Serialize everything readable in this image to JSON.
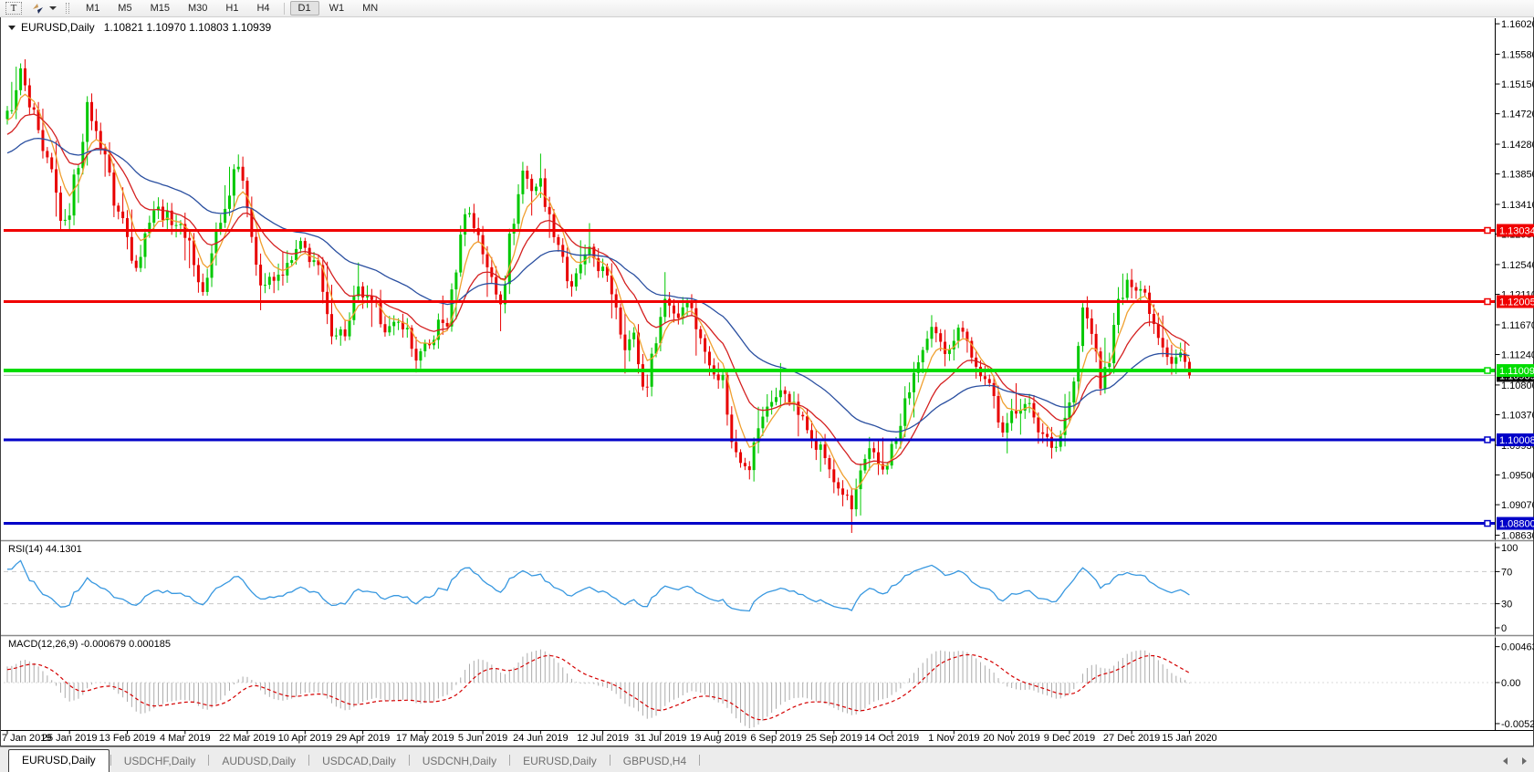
{
  "toolbar": {
    "text_tool_label": "T",
    "timeframes": [
      {
        "label": "M1"
      },
      {
        "label": "M5"
      },
      {
        "label": "M15"
      },
      {
        "label": "M30"
      },
      {
        "label": "H1"
      },
      {
        "label": "H4",
        "divider_after": true
      },
      {
        "label": "D1",
        "active": true
      },
      {
        "label": "W1"
      },
      {
        "label": "MN"
      }
    ]
  },
  "title": {
    "symbol_period": "EURUSD,Daily",
    "ohlc": "1.10821 1.10970 1.10803 1.10939"
  },
  "chart_data": {
    "type": "candlestick",
    "symbol": "EURUSD",
    "period": "Daily",
    "quote_open": "1.10821",
    "quote_high": "1.10970",
    "quote_low": "1.10803",
    "quote_close": "1.10939",
    "candle_up_color": "#00C800",
    "candle_down_color": "#E80000",
    "price_scale": {
      "top": 1.161,
      "bottom": 1.0857
    },
    "y_axis_ticks": [
      "1.16020",
      "1.15580",
      "1.15150",
      "1.14720",
      "1.14280",
      "1.13850",
      "1.13410",
      "1.12980",
      "1.12540",
      "1.12110",
      "1.11670",
      "1.11240",
      "1.10800",
      "1.10370",
      "1.09930",
      "1.09500",
      "1.09070",
      "1.08630"
    ],
    "x_axis_labels": [
      {
        "i": 0,
        "t": "7 Jan 2019"
      },
      {
        "i": 14,
        "t": "25 Jan 2019"
      },
      {
        "i": 27,
        "t": "13 Feb 2019"
      },
      {
        "i": 40,
        "t": "4 Mar 2019"
      },
      {
        "i": 54,
        "t": "22 Mar 2019"
      },
      {
        "i": 67,
        "t": "10 Apr 2019"
      },
      {
        "i": 80,
        "t": "29 Apr 2019"
      },
      {
        "i": 94,
        "t": "17 May 2019"
      },
      {
        "i": 107,
        "t": "5 Jun 2019"
      },
      {
        "i": 120,
        "t": "24 Jun 2019"
      },
      {
        "i": 134,
        "t": "12 Jul 2019"
      },
      {
        "i": 147,
        "t": "31 Jul 2019"
      },
      {
        "i": 160,
        "t": "19 Aug 2019"
      },
      {
        "i": 173,
        "t": "6 Sep 2019"
      },
      {
        "i": 186,
        "t": "25 Sep 2019"
      },
      {
        "i": 199,
        "t": "14 Oct 2019"
      },
      {
        "i": 213,
        "t": "1 Nov 2019"
      },
      {
        "i": 226,
        "t": "20 Nov 2019"
      },
      {
        "i": 239,
        "t": "9 Dec 2019"
      },
      {
        "i": 253,
        "t": "27 Dec 2019"
      },
      {
        "i": 266,
        "t": "15 Jan 2020"
      }
    ],
    "candle_count": 267,
    "price_path_anchors": [
      [
        -60,
        1.138
      ],
      [
        -48,
        1.134
      ],
      [
        -36,
        1.14
      ],
      [
        -24,
        1.138
      ],
      [
        -14,
        1.141
      ],
      [
        -7,
        1.144
      ],
      [
        0,
        1.147
      ],
      [
        2,
        1.15
      ],
      [
        3,
        1.1535
      ],
      [
        5,
        1.148
      ],
      [
        9,
        1.14
      ],
      [
        13,
        1.131
      ],
      [
        16,
        1.14
      ],
      [
        18,
        1.148
      ],
      [
        21,
        1.143
      ],
      [
        25,
        1.133
      ],
      [
        29,
        1.1258
      ],
      [
        33,
        1.1335
      ],
      [
        37,
        1.132
      ],
      [
        40,
        1.13
      ],
      [
        44,
        1.1215
      ],
      [
        48,
        1.132
      ],
      [
        52,
        1.1405
      ],
      [
        55,
        1.13
      ],
      [
        57,
        1.1225
      ],
      [
        60,
        1.123
      ],
      [
        63,
        1.125
      ],
      [
        66,
        1.128
      ],
      [
        69,
        1.126
      ],
      [
        73,
        1.116
      ],
      [
        76,
        1.1155
      ],
      [
        79,
        1.1215
      ],
      [
        82,
        1.1195
      ],
      [
        86,
        1.116
      ],
      [
        89,
        1.117
      ],
      [
        92,
        1.112
      ],
      [
        95,
        1.1135
      ],
      [
        97,
        1.1168
      ],
      [
        99,
        1.117
      ],
      [
        101,
        1.125
      ],
      [
        103,
        1.1335
      ],
      [
        106,
        1.13
      ],
      [
        108,
        1.1245
      ],
      [
        111,
        1.1205
      ],
      [
        114,
        1.132
      ],
      [
        116,
        1.139
      ],
      [
        118,
        1.1365
      ],
      [
        120,
        1.1373
      ],
      [
        122,
        1.132
      ],
      [
        124,
        1.1285
      ],
      [
        127,
        1.1215
      ],
      [
        129,
        1.1255
      ],
      [
        131,
        1.127
      ],
      [
        134,
        1.1245
      ],
      [
        136,
        1.1215
      ],
      [
        139,
        1.114
      ],
      [
        141,
        1.115
      ],
      [
        143,
        1.1077
      ],
      [
        144,
        1.1085
      ],
      [
        146,
        1.115
      ],
      [
        148,
        1.1205
      ],
      [
        151,
        1.118
      ],
      [
        153,
        1.121
      ],
      [
        155,
        1.1165
      ],
      [
        158,
        1.111
      ],
      [
        161,
        1.109
      ],
      [
        163,
        1.0995
      ],
      [
        165,
        1.0975
      ],
      [
        167,
        1.0965
      ],
      [
        169,
        1.102
      ],
      [
        172,
        1.106
      ],
      [
        175,
        1.107
      ],
      [
        178,
        1.104
      ],
      [
        180,
        1.1015
      ],
      [
        183,
        1.099
      ],
      [
        186,
        1.094
      ],
      [
        188,
        1.0925
      ],
      [
        190,
        1.09
      ],
      [
        192,
        1.0955
      ],
      [
        194,
        1.098
      ],
      [
        197,
        1.096
      ],
      [
        200,
        1.1
      ],
      [
        203,
        1.1075
      ],
      [
        206,
        1.113
      ],
      [
        208,
        1.1155
      ],
      [
        211,
        1.113
      ],
      [
        213,
        1.115
      ],
      [
        215,
        1.1165
      ],
      [
        218,
        1.1105
      ],
      [
        221,
        1.1075
      ],
      [
        224,
        1.102
      ],
      [
        227,
        1.104
      ],
      [
        229,
        1.106
      ],
      [
        232,
        1.1015
      ],
      [
        234,
        1.1005
      ],
      [
        236,
        1.0992
      ],
      [
        238,
        1.103
      ],
      [
        240,
        1.108
      ],
      [
        242,
        1.119
      ],
      [
        244,
        1.116
      ],
      [
        246,
        1.108
      ],
      [
        248,
        1.112
      ],
      [
        250,
        1.12
      ],
      [
        253,
        1.123
      ],
      [
        255,
        1.122
      ],
      [
        256,
        1.1212
      ],
      [
        258,
        1.117
      ],
      [
        260,
        1.114
      ],
      [
        262,
        1.1115
      ],
      [
        264,
        1.1125
      ],
      [
        266,
        1.1094
      ]
    ],
    "horizontal_lines": [
      {
        "price": 1.13034,
        "label": "1.13034",
        "color": "#F00000",
        "width": 3
      },
      {
        "price": 1.12005,
        "label": "1.12005",
        "color": "#F00000",
        "width": 3
      },
      {
        "price": 1.11009,
        "label": "1.11009",
        "color": "#00DC00",
        "width": 4
      },
      {
        "price": 1.10008,
        "label": "1.10008",
        "color": "#0000C8",
        "width": 3
      },
      {
        "price": 1.088,
        "label": "1.08800",
        "color": "#0000C8",
        "width": 3
      }
    ],
    "bid_line": {
      "price": 1.10939,
      "label": "1.10939",
      "color": "#BDBDBD",
      "label_bg": "#000000"
    },
    "moving_averages": [
      {
        "name": "fast",
        "period": 6,
        "color": "#F0A030"
      },
      {
        "name": "medium",
        "period": 16,
        "color": "#D42020"
      },
      {
        "name": "slow",
        "period": 42,
        "color": "#2A4FA0"
      }
    ],
    "rsi": {
      "label": "RSI(14) 44.1301",
      "period": 14,
      "value": 44.1301,
      "overbought": 70,
      "oversold": 30,
      "axis_ticks": [
        "100",
        "70",
        "30",
        "0"
      ],
      "color": "#3898E0"
    },
    "macd": {
      "label": "MACD(12,26,9) -0.000679 0.000185",
      "fast": 12,
      "slow": 26,
      "signal_period": 9,
      "value": -0.000679,
      "signal_value": 0.000185,
      "axis_ticks": [
        "0.00463",
        "0.00",
        "-0.00529"
      ],
      "histogram_color": "#ABABAB",
      "signal_color": "#D40000"
    }
  },
  "tabs": {
    "items": [
      {
        "label": "EURUSD,Daily",
        "active": true
      },
      {
        "label": "USDCHF,Daily"
      },
      {
        "label": "AUDUSD,Daily"
      },
      {
        "label": "USDCAD,Daily"
      },
      {
        "label": "USDCNH,Daily"
      },
      {
        "label": "EURUSD,Daily"
      },
      {
        "label": "GBPUSD,H4"
      }
    ]
  }
}
